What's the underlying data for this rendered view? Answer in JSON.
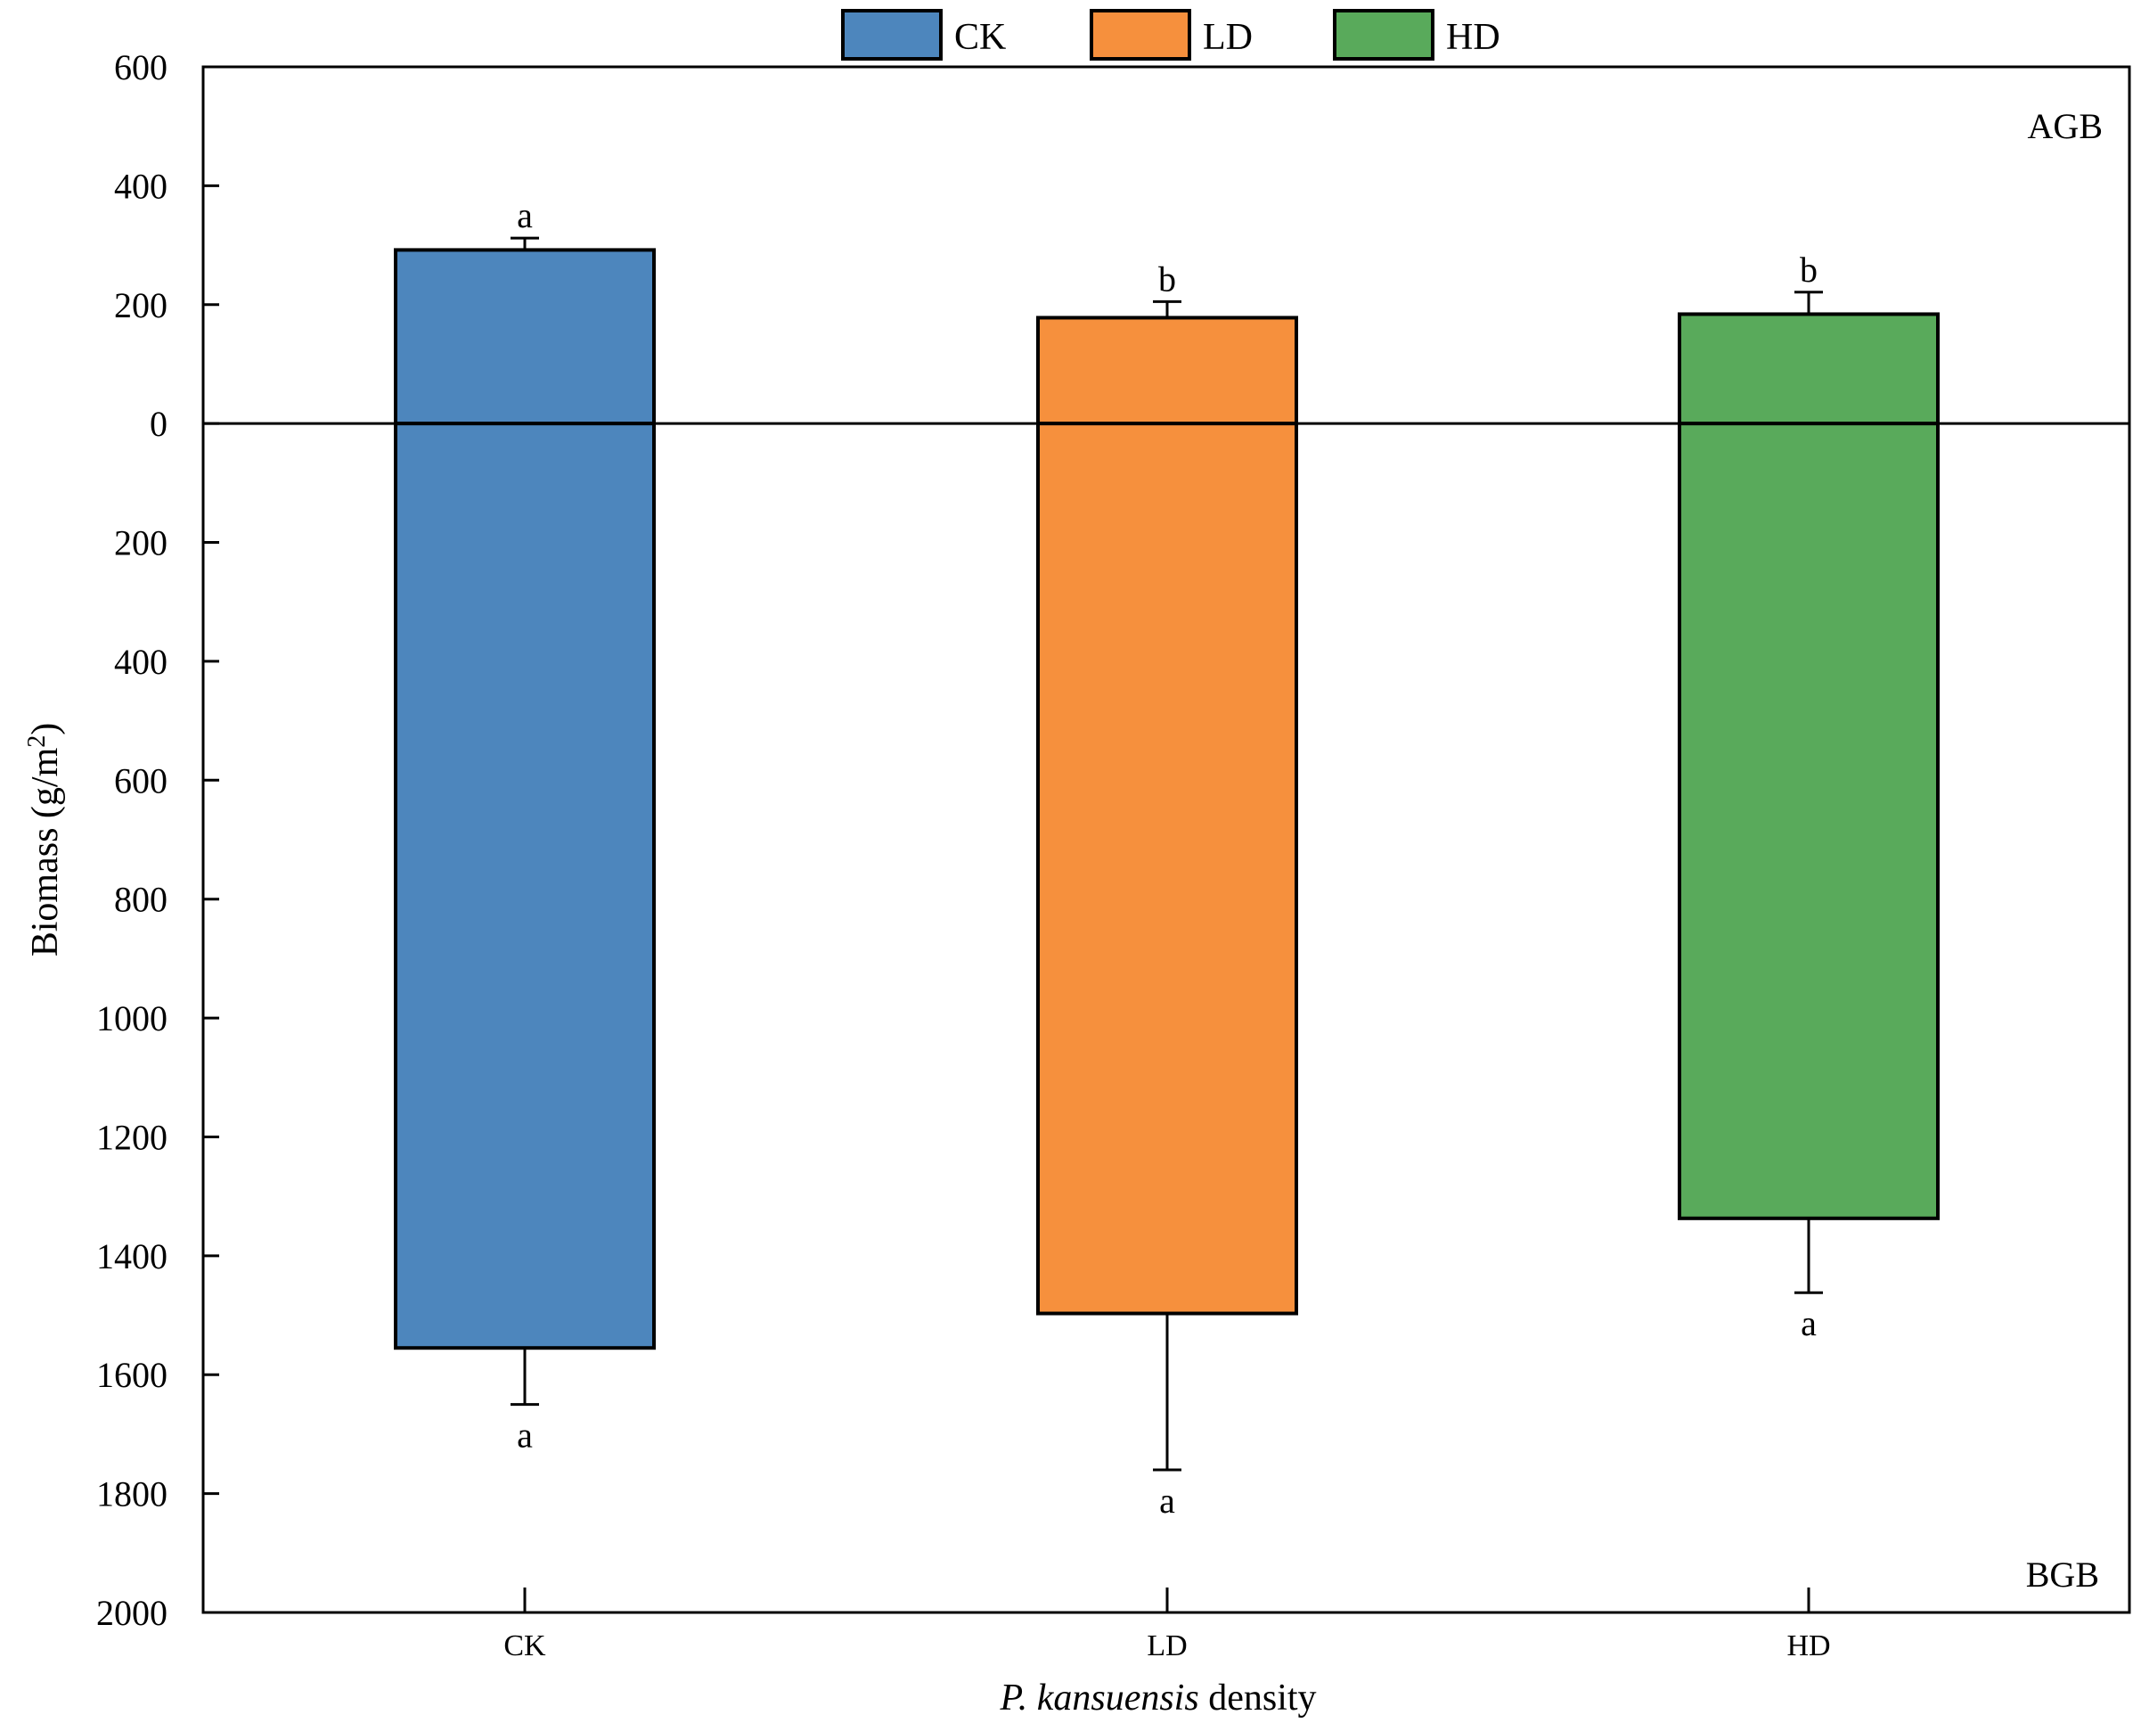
{
  "chart_data": {
    "type": "bar",
    "orientation": "diverging vertical (AGB up, BGB down)",
    "categories": [
      "CK",
      "LD",
      "HD"
    ],
    "colors": {
      "CK": "#4d86bd",
      "LD": "#f6903d",
      "HD": "#59aa5b"
    },
    "series": [
      {
        "name": "AGB",
        "values": [
          292,
          178,
          184
        ],
        "error": [
          20,
          27,
          37
        ],
        "letters": [
          "a",
          "b",
          "b"
        ]
      },
      {
        "name": "BGB",
        "values": [
          1555,
          1497,
          1337
        ],
        "error": [
          95,
          263,
          125
        ],
        "letters": [
          "a",
          "a",
          "a"
        ]
      }
    ],
    "legend": [
      "CK",
      "LD",
      "HD"
    ],
    "legend_position": "top-center",
    "panel_labels": {
      "top": "AGB",
      "bottom": "BGB"
    },
    "ylabel": {
      "main": "Biomass (g/m",
      "superscript": "2",
      "close": ")"
    },
    "xlabel": {
      "italic": "P. kansuensis",
      "rest": " density"
    },
    "ylim": [
      600,
      -2000
    ],
    "yticks": [
      600,
      400,
      200,
      0,
      -200,
      -400,
      -600,
      -800,
      -1000,
      -1200,
      -1400,
      -1600,
      -1800,
      -2000
    ],
    "ytick_labels": [
      "600",
      "400",
      "200",
      "0",
      "200",
      "400",
      "600",
      "800",
      "1000",
      "1200",
      "1400",
      "1600",
      "1800",
      "2000"
    ],
    "grid": false
  }
}
